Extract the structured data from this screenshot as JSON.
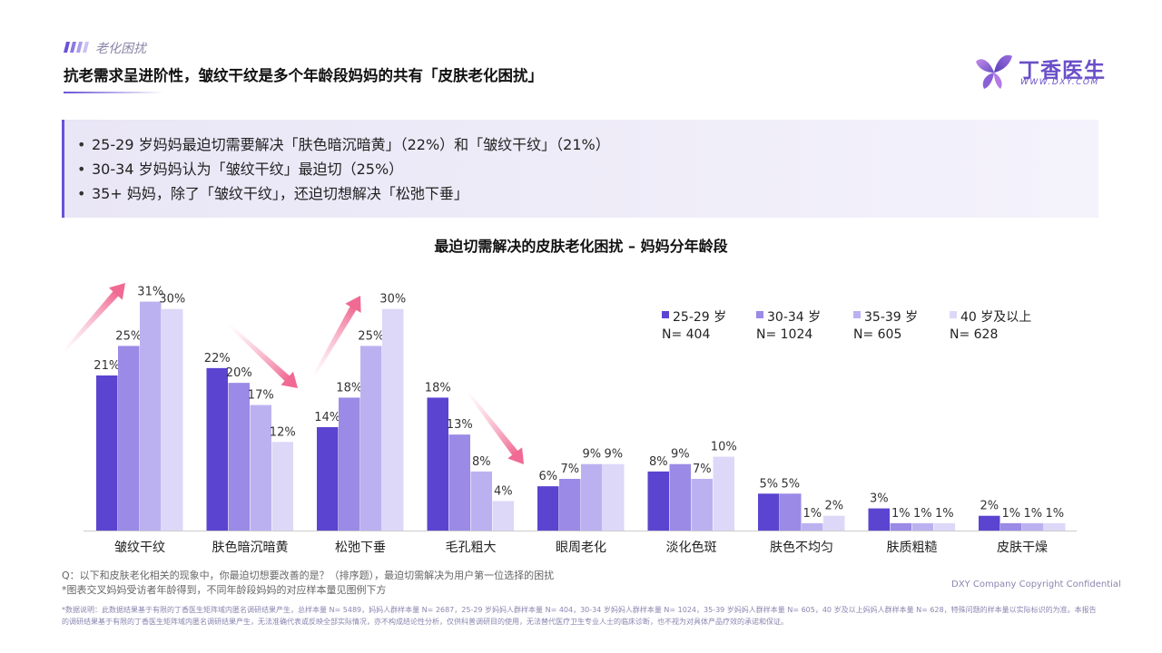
{
  "header": {
    "section_tag": "老化困扰",
    "title": "抗老需求呈进阶性，皱纹干纹是多个年龄段妈妈的共有「皮肤老化困扰」"
  },
  "logo": {
    "text": "丁香医生",
    "sub": "WWW.DXY.COM",
    "icon": "butterfly-icon",
    "color": "#6a4fc8"
  },
  "summary": {
    "bullets": [
      "25-29 岁妈妈最迫切需要解决「肤色暗沉暗黄」（22%）和「皱纹干纹」（21%）",
      "30-34 岁妈妈认为「皱纹干纹」最迫切（25%）",
      "35+ 妈妈，除了「皱纹干纹」，还迫切想解决「松弛下垂」"
    ]
  },
  "chart_data": {
    "type": "bar",
    "title": "最迫切需解决的皮肤老化困扰 – 妈妈分年龄段",
    "categories": [
      "皱纹干纹",
      "肤色暗沉暗黄",
      "松弛下垂",
      "毛孔粗大",
      "眼周老化",
      "淡化色斑",
      "肤色不均匀",
      "肤质粗糙",
      "皮肤干燥"
    ],
    "series": [
      {
        "name": "25-29 岁",
        "n": "N= 404",
        "color": "#5b44d0",
        "values": [
          21,
          22,
          14,
          18,
          6,
          8,
          5,
          3,
          2
        ]
      },
      {
        "name": "30-34 岁",
        "n": "N= 1024",
        "color": "#9b8ae6",
        "values": [
          25,
          20,
          18,
          13,
          7,
          9,
          5,
          1,
          1
        ]
      },
      {
        "name": "35-39 岁",
        "n": "N= 605",
        "color": "#bcb1f0",
        "values": [
          31,
          17,
          25,
          8,
          9,
          7,
          1,
          1,
          1
        ]
      },
      {
        "name": "40 岁及以上",
        "n": "N= 628",
        "color": "#ddd8f8",
        "values": [
          30,
          12,
          30,
          4,
          9,
          10,
          2,
          1,
          1
        ]
      }
    ],
    "value_suffix": "%",
    "ylim": [
      0,
      35
    ],
    "grid": false,
    "legend": "top-right"
  },
  "footer": {
    "question": "Q：以下和皮肤老化相关的现象中，你最迫切想要改善的是？（排序题），最迫切需解决为用户第一位选择的困扰",
    "note": "*图表交叉妈妈受访者年龄得到，不同年龄段妈妈的对应样本量见图例下方",
    "copyright": "DXY Company Copyright Confidential",
    "disclaimer": "*数据说明：此数据结果基于有限的丁香医生矩阵域内匿名调研结果产生，总样本量 N= 5489，妈妈人群样本量 N= 2687，25-29 岁妈妈人群样本量 N= 404，30-34 岁妈妈人群样本量 N= 1024，35-39 岁妈妈人群样本量 N= 605，40 岁及以上妈妈人群样本量 N= 628，特殊问题的样本量以实际标识的为准。本报告的调研结果基于有限的丁香医生矩阵域内匿名调研结果产生，无法准确代表或反映全部实际情况，亦不构成结论性分析，仅供科普调研目的使用，无法替代医疗卫生专业人士的临床诊断，也不视为对具体产品疗效的承诺和保证。"
  }
}
